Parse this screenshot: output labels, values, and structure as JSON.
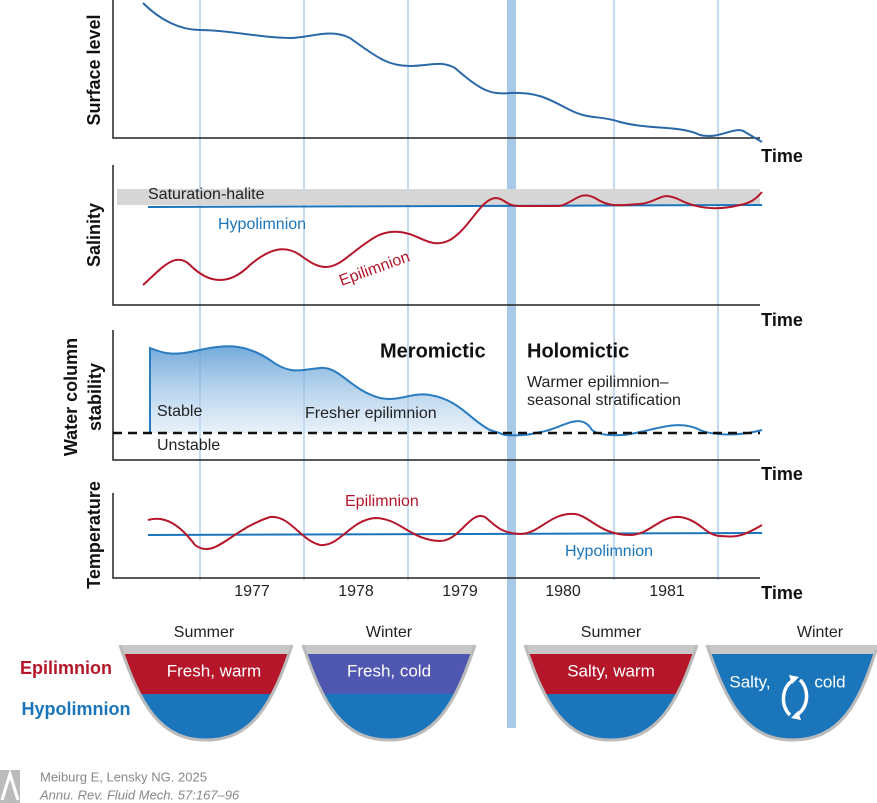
{
  "panels": [
    {
      "y_label": "Surface level",
      "x_label": "Time"
    },
    {
      "y_label": "Salinity",
      "x_label": "Time",
      "band_label": "Saturation-halite",
      "hypolimnion": "Hypolimnion",
      "epilimnion": "Epilimnion"
    },
    {
      "y_label": [
        "Water column",
        "stability"
      ],
      "x_label": "Time",
      "phases": [
        "Meromictic",
        "Holomictic"
      ],
      "notes": [
        "Warmer epilimnion–",
        "seasonal stratification"
      ],
      "stable": "Stable",
      "unstable": "Unstable",
      "fresher": "Fresher epilimnion"
    },
    {
      "y_label": "Temperature",
      "x_label": "Time",
      "epilimnion": "Epilimnion",
      "hypolimnion": "Hypolimnion",
      "years": [
        "1977",
        "1978",
        "1979",
        "1980",
        "1981"
      ]
    }
  ],
  "legend": {
    "epilimnion": "Epilimnion",
    "hypolimnion": "Hypolimnion"
  },
  "basins": [
    {
      "season": "Summer",
      "label": "Fresh, warm"
    },
    {
      "season": "Winter",
      "label": "Fresh, cold"
    },
    {
      "season": "Summer",
      "label": "Salty, warm"
    },
    {
      "season": "Winter",
      "label": [
        "Salty,",
        "cold"
      ]
    }
  ],
  "citation": {
    "authors": "Meiburg E, Lensky NG. 2025",
    "journal": "Annu. Rev. Fluid Mech. 57:167–96"
  }
}
